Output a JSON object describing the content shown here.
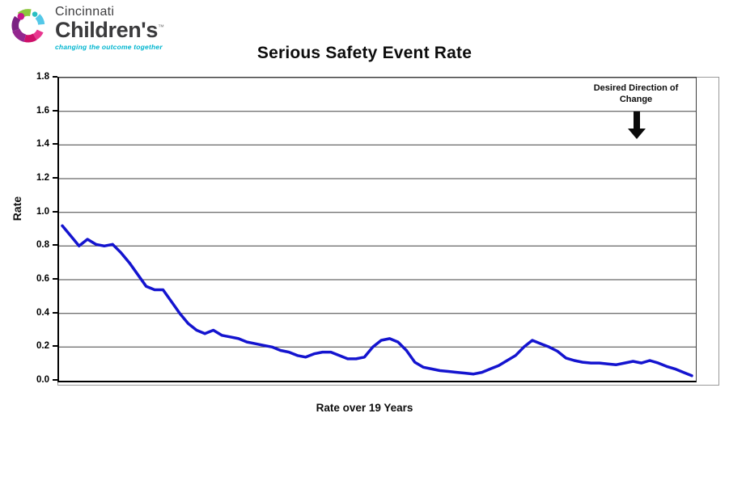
{
  "logo": {
    "name": "Cincinnati",
    "name2": "Children's",
    "trademark": "™",
    "tagline": "changing the outcome together",
    "tagline_color": "#00B5CF",
    "mark_colors": [
      "#8DC63F",
      "#29BFC2",
      "#54C8E8",
      "#E8368F",
      "#CE0F69",
      "#93268F",
      "#7A2182",
      "#C6168D"
    ]
  },
  "chart_data": {
    "type": "line",
    "title": "Serious Safety Event Rate",
    "ylabel": "Rate",
    "xlabel": "Rate over 19 Years",
    "ylim": [
      0,
      1.8
    ],
    "yticks": [
      0.0,
      0.2,
      0.4,
      0.6,
      0.8,
      1.0,
      1.2,
      1.4,
      1.6,
      1.8
    ],
    "ytick_labels": [
      "0.0",
      "0.2",
      "0.4",
      "0.6",
      "0.8",
      "1.0",
      "1.2",
      "1.4",
      "1.6",
      "1.8"
    ],
    "x_unit": "quarterly samples over 19 years",
    "n_points": 76,
    "values": [
      0.92,
      0.86,
      0.8,
      0.84,
      0.81,
      0.8,
      0.81,
      0.76,
      0.7,
      0.63,
      0.56,
      0.54,
      0.54,
      0.47,
      0.4,
      0.34,
      0.3,
      0.28,
      0.3,
      0.27,
      0.26,
      0.25,
      0.23,
      0.22,
      0.21,
      0.2,
      0.18,
      0.17,
      0.15,
      0.14,
      0.16,
      0.17,
      0.17,
      0.15,
      0.13,
      0.13,
      0.14,
      0.2,
      0.24,
      0.25,
      0.23,
      0.18,
      0.11,
      0.08,
      0.07,
      0.06,
      0.055,
      0.05,
      0.045,
      0.04,
      0.05,
      0.07,
      0.09,
      0.12,
      0.15,
      0.2,
      0.24,
      0.22,
      0.2,
      0.175,
      0.135,
      0.12,
      0.11,
      0.105,
      0.105,
      0.1,
      0.095,
      0.105,
      0.115,
      0.105,
      0.12,
      0.105,
      0.085,
      0.07,
      0.05,
      0.03
    ],
    "line_color": "#1414CF",
    "grid": true,
    "grid_color": "#404040",
    "legend": "none",
    "annotation": {
      "text": "Desired Direction of Change",
      "arrow": "down",
      "arrow_color": "#0a0a0a"
    }
  }
}
